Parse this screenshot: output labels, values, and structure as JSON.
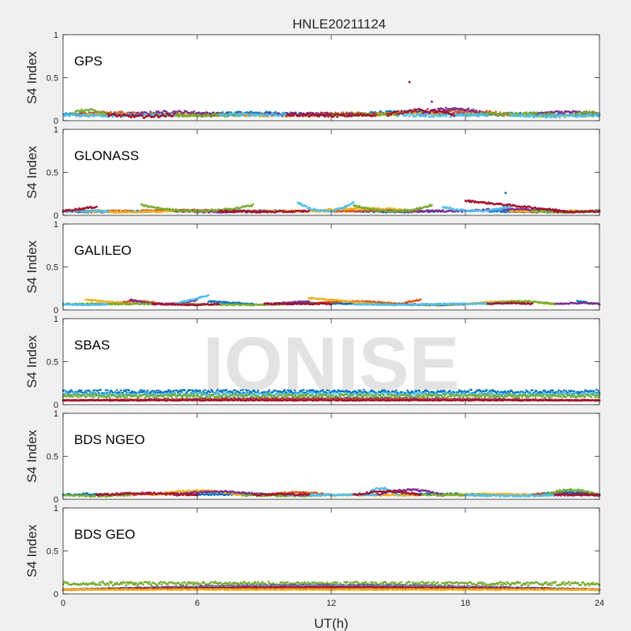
{
  "chart_data": {
    "type": "scatter",
    "title": "HNLE20211124",
    "xlabel": "UT(h)",
    "ylabel": "S4 Index",
    "xlim": [
      0,
      24
    ],
    "ylim": [
      0,
      1
    ],
    "x_ticks": [
      0,
      6,
      12,
      18,
      24
    ],
    "y_ticks": [
      0,
      0.5,
      1
    ],
    "y_tick_labels": [
      "0",
      "0.5",
      "1"
    ],
    "grid": false,
    "watermark": "IONISE",
    "watermark_panel": "SBAS",
    "series_colors": [
      "#0072bd",
      "#d95319",
      "#edb120",
      "#7e2f8e",
      "#77ac30",
      "#4dbeee",
      "#a2142f"
    ],
    "panels": [
      {
        "label": "GPS",
        "baseline": 0.07,
        "spread": 0.035,
        "series": [
          {
            "color": "#0072bd",
            "arcs": [
              [
                0,
                3.5,
                0.08
              ],
              [
                6,
                11,
                0.09
              ],
              [
                13,
                18,
                0.1
              ],
              [
                19,
                24,
                0.08
              ]
            ]
          },
          {
            "color": "#d95319",
            "arcs": [
              [
                0.5,
                4,
                0.09
              ],
              [
                5,
                9,
                0.07
              ],
              [
                11,
                15,
                0.08
              ],
              [
                16,
                20,
                0.11
              ]
            ]
          },
          {
            "color": "#edb120",
            "arcs": [
              [
                1,
                6,
                0.07
              ],
              [
                8,
                12,
                0.06
              ],
              [
                14,
                17,
                0.09
              ],
              [
                20,
                24,
                0.06
              ]
            ]
          },
          {
            "color": "#7e2f8e",
            "arcs": [
              [
                3,
                7,
                0.1
              ],
              [
                9,
                13,
                0.08
              ],
              [
                16,
                19,
                0.14
              ],
              [
                21,
                24,
                0.1
              ]
            ]
          },
          {
            "color": "#77ac30",
            "arcs": [
              [
                0.2,
                2,
                0.12
              ],
              [
                4,
                8,
                0.06
              ],
              [
                12,
                15,
                0.07
              ],
              [
                18,
                22,
                0.08
              ],
              [
                23,
                24,
                0.1
              ]
            ]
          },
          {
            "color": "#4dbeee",
            "arcs": [
              [
                0,
                5,
                0.06
              ],
              [
                7,
                10,
                0.07
              ],
              [
                15,
                19,
                0.06
              ],
              [
                20,
                24,
                0.05
              ]
            ]
          },
          {
            "color": "#a2142f",
            "arcs": [
              [
                2,
                5,
                0.05
              ],
              [
                10,
                14,
                0.06
              ],
              [
                14.5,
                17.5,
                0.12
              ]
            ]
          }
        ],
        "outliers": [
          {
            "x": 15.5,
            "y": 0.45,
            "color": "#a2142f"
          },
          {
            "x": 16.5,
            "y": 0.22,
            "color": "#7e2f8e"
          }
        ]
      },
      {
        "label": "GLONASS",
        "baseline": 0.05,
        "spread": 0.02,
        "series": [
          {
            "color": "#0072bd",
            "arcs": [
              [
                0,
                4,
                0.04
              ],
              [
                6,
                10,
                0.05
              ],
              [
                13,
                17,
                0.04
              ],
              [
                19,
                24,
                0.04
              ]
            ]
          },
          {
            "color": "#d95319",
            "arcs": [
              [
                0,
                3,
                0.05
              ],
              [
                3.5,
                8,
                0.06
              ],
              [
                12,
                16,
                0.05
              ],
              [
                20,
                24,
                0.04
              ]
            ]
          },
          {
            "color": "#edb120",
            "arcs": [
              [
                1,
                5,
                0.04
              ],
              [
                8,
                12,
                0.05
              ],
              [
                11,
                16,
                0.08
              ],
              [
                20,
                23,
                0.05
              ]
            ]
          },
          {
            "color": "#7e2f8e",
            "arcs": [
              [
                5,
                9,
                0.04
              ],
              [
                14,
                18,
                0.05
              ],
              [
                18,
                22,
                0.07
              ]
            ]
          },
          {
            "color": "#77ac30",
            "arcs": [
              [
                3.5,
                8.5,
                0.12,
                "u"
              ],
              [
                13,
                16.5,
                0.12,
                "u"
              ],
              [
                21,
                24,
                0.04
              ]
            ]
          },
          {
            "color": "#4dbeee",
            "arcs": [
              [
                10.5,
                13,
                0.15,
                "u"
              ],
              [
                0,
                2,
                0.05
              ],
              [
                17,
                20,
                0.1,
                "u"
              ]
            ]
          },
          {
            "color": "#a2142f",
            "arcs": [
              [
                0,
                1.5,
                0.1,
                "r"
              ],
              [
                7,
                11,
                0.04
              ],
              [
                18,
                22.5,
                0.17,
                "d"
              ],
              [
                22,
                24,
                0.04
              ]
            ]
          }
        ],
        "outliers": [
          {
            "x": 19.8,
            "y": 0.26,
            "color": "#0072bd"
          }
        ]
      },
      {
        "label": "GALILEO",
        "baseline": 0.07,
        "spread": 0.015,
        "series": [
          {
            "color": "#0072bd",
            "arcs": [
              [
                6.5,
                8.5,
                0.1,
                "d"
              ],
              [
                10,
                13,
                0.08
              ],
              [
                16,
                18,
                0.06
              ],
              [
                23,
                24,
                0.1,
                "d"
              ]
            ]
          },
          {
            "color": "#d95319",
            "arcs": [
              [
                2,
                4.5,
                0.1
              ],
              [
                11,
                15,
                0.1
              ],
              [
                15,
                16,
                0.12,
                "r"
              ]
            ]
          },
          {
            "color": "#edb120",
            "arcs": [
              [
                1,
                3,
                0.12,
                "d"
              ],
              [
                11,
                14,
                0.14,
                "d"
              ],
              [
                18,
                22,
                0.1
              ]
            ]
          },
          {
            "color": "#7e2f8e",
            "arcs": [
              [
                3,
                6,
                0.12,
                "u"
              ],
              [
                9,
                11,
                0.1,
                "r"
              ],
              [
                15,
                18,
                0.06
              ],
              [
                22,
                24,
                0.08
              ]
            ]
          },
          {
            "color": "#77ac30",
            "arcs": [
              [
                0,
                4,
                0.07
              ],
              [
                5,
                10,
                0.06
              ],
              [
                14,
                18,
                0.06
              ],
              [
                19,
                22,
                0.1
              ]
            ]
          },
          {
            "color": "#4dbeee",
            "arcs": [
              [
                0,
                2,
                0.06
              ],
              [
                5,
                6.5,
                0.17,
                "r"
              ],
              [
                13,
                17,
                0.06
              ],
              [
                17,
                20,
                0.08,
                "r"
              ]
            ]
          },
          {
            "color": "#a2142f",
            "arcs": [
              [
                4,
                7,
                0.06
              ],
              [
                9,
                12,
                0.07
              ],
              [
                19,
                21,
                0.08
              ]
            ]
          }
        ],
        "outliers": []
      },
      {
        "label": "SBAS",
        "baseline": 0.05,
        "spread": 0.01,
        "series": [
          {
            "color": "#0072bd",
            "arcs": [
              [
                0,
                24,
                0.15,
                "n"
              ]
            ]
          },
          {
            "color": "#4dbeee",
            "arcs": [
              [
                0,
                24,
                0.12,
                "n"
              ]
            ]
          },
          {
            "color": "#77ac30",
            "arcs": [
              [
                0,
                24,
                0.1,
                "n"
              ]
            ]
          },
          {
            "color": "#7e2f8e",
            "arcs": [
              [
                0,
                24,
                0.07
              ]
            ]
          },
          {
            "color": "#d95319",
            "arcs": [
              [
                0,
                24,
                0.06
              ]
            ]
          },
          {
            "color": "#a2142f",
            "arcs": [
              [
                0,
                24,
                0.05
              ]
            ]
          }
        ],
        "outliers": []
      },
      {
        "label": "BDS NGEO",
        "baseline": 0.05,
        "spread": 0.02,
        "series": [
          {
            "color": "#0072bd",
            "arcs": [
              [
                0,
                2,
                0.06
              ],
              [
                6,
                10,
                0.06
              ],
              [
                15,
                19,
                0.06
              ],
              [
                21,
                24,
                0.08
              ]
            ]
          },
          {
            "color": "#d95319",
            "arcs": [
              [
                2,
                6,
                0.06
              ],
              [
                9,
                12,
                0.08
              ],
              [
                20,
                24,
                0.06
              ]
            ]
          },
          {
            "color": "#edb120",
            "arcs": [
              [
                4,
                8,
                0.1
              ],
              [
                12,
                16,
                0.05
              ],
              [
                17,
                21,
                0.06
              ]
            ]
          },
          {
            "color": "#7e2f8e",
            "arcs": [
              [
                5,
                9,
                0.09
              ],
              [
                14,
                17,
                0.11
              ],
              [
                22,
                24,
                0.05
              ]
            ]
          },
          {
            "color": "#77ac30",
            "arcs": [
              [
                0,
                3,
                0.04
              ],
              [
                8,
                12,
                0.04
              ],
              [
                16,
                19,
                0.05
              ],
              [
                21.5,
                24,
                0.11
              ]
            ]
          },
          {
            "color": "#4dbeee",
            "arcs": [
              [
                10,
                14,
                0.05
              ],
              [
                18,
                22,
                0.04
              ],
              [
                13.5,
                15,
                0.13
              ]
            ]
          },
          {
            "color": "#a2142f",
            "arcs": [
              [
                1.5,
                6,
                0.07
              ],
              [
                8.5,
                11,
                0.06
              ],
              [
                13,
                16,
                0.09
              ],
              [
                22,
                24,
                0.06
              ]
            ]
          }
        ],
        "outliers": []
      },
      {
        "label": "BDS GEO",
        "baseline": 0.05,
        "spread": 0.01,
        "series": [
          {
            "color": "#77ac30",
            "arcs": [
              [
                0,
                24,
                0.12,
                "n"
              ]
            ]
          },
          {
            "color": "#7e2f8e",
            "arcs": [
              [
                0,
                24,
                0.1
              ]
            ]
          },
          {
            "color": "#4dbeee",
            "arcs": [
              [
                0,
                24,
                0.09
              ]
            ]
          },
          {
            "color": "#a2142f",
            "arcs": [
              [
                0,
                24,
                0.08
              ]
            ]
          },
          {
            "color": "#d95319",
            "arcs": [
              [
                0,
                24,
                0.06
              ]
            ]
          },
          {
            "color": "#edb120",
            "arcs": [
              [
                0,
                24,
                0.05
              ]
            ]
          }
        ],
        "outliers": []
      }
    ]
  }
}
